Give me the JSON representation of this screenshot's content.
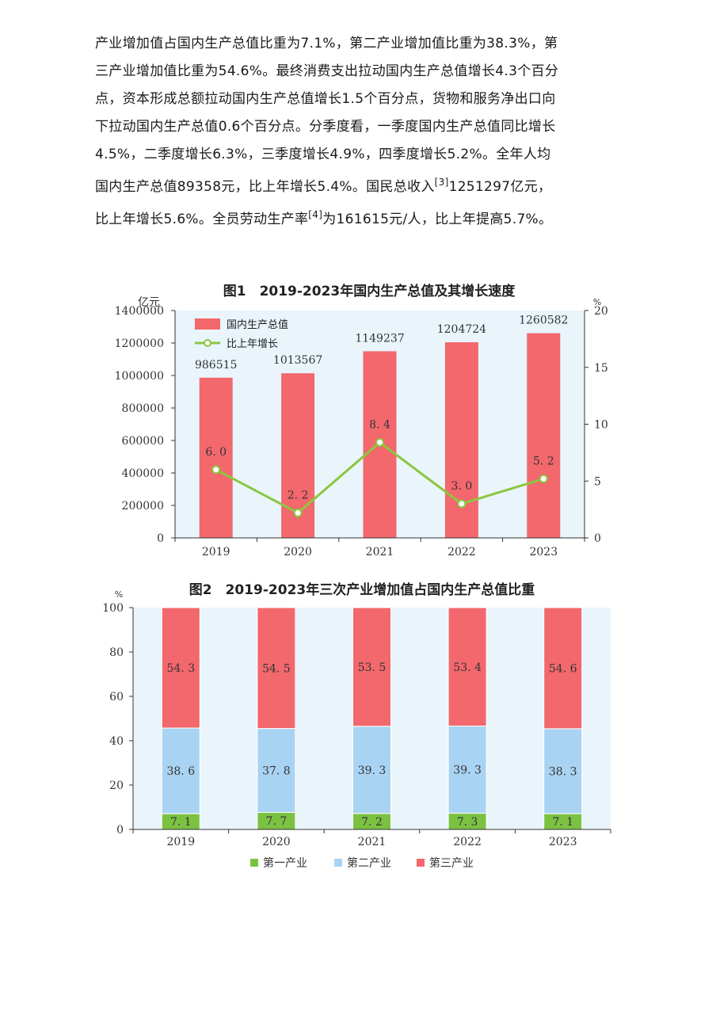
{
  "paragraph": {
    "lines": [
      "产业增加值占国内生产总值比重为7.1%，第二产业增加值比重为38.3%，第",
      "三产业增加值比重为54.6%。最终消费支出拉动国内生产总值增长4.3个百分",
      "点，资本形成总额拉动国内生产总值增长1.5个百分点，货物和服务净出口向",
      "下拉动国内生产总值0.6个百分点。分季度看，一季度国内生产总值同比增长",
      "4.5%，二季度增长6.3%，三季度增长4.9%，四季度增长5.2%。全年人均"
    ],
    "line6": {
      "pre": "国内生产总值89358元，比上年增长5.4%。国民总收入",
      "sup": "[3]",
      "post": "1251297亿元，"
    },
    "line7": {
      "pre": "比上年增长5.6%。全员劳动生产率",
      "sup": "[4]",
      "post": "为161615元/人，比上年提高5.7%。"
    }
  },
  "chart_data": [
    {
      "type": "bar+line",
      "title": "图1　2019-2023年国内生产总值及其增长速度",
      "y_left_unit": "亿元",
      "y_right_unit": "%",
      "categories": [
        "2019",
        "2020",
        "2021",
        "2022",
        "2023"
      ],
      "y_left_ticks": [
        "1400000",
        "1200000",
        "1000000",
        "800000",
        "600000",
        "400000",
        "200000",
        "0"
      ],
      "y_right_ticks": [
        "20",
        "15",
        "10",
        "5",
        "0"
      ],
      "ylim_left": [
        0,
        1400000
      ],
      "ylim_right": [
        0,
        20
      ],
      "series": [
        {
          "name": "国内生产总值",
          "kind": "bar",
          "color": "#f2686d",
          "values": [
            986515,
            1013567,
            1149237,
            1204724,
            1260582
          ],
          "labels": [
            "986515",
            "1013567",
            "1149237",
            "1204724",
            "1260582"
          ]
        },
        {
          "name": "比上年增长",
          "kind": "line",
          "color": "#8cc63f",
          "values": [
            6.0,
            2.2,
            8.4,
            3.0,
            5.2
          ],
          "labels": [
            "6. 0",
            "2. 2",
            "8. 4",
            "3. 0",
            "5. 2"
          ]
        }
      ],
      "legend_position": "top-left",
      "background": "#e9f5fb"
    },
    {
      "type": "stacked-bar",
      "title": "图2　2019-2023年三次产业增加值占国内生产总值比重",
      "y_unit": "%",
      "categories": [
        "2019",
        "2020",
        "2021",
        "2022",
        "2023"
      ],
      "y_ticks": [
        "100",
        "80",
        "60",
        "40",
        "20",
        "0"
      ],
      "ylim": [
        0,
        100
      ],
      "series": [
        {
          "name": "第一产业",
          "color": "#7cc242",
          "values": [
            7.1,
            7.7,
            7.2,
            7.3,
            7.1
          ],
          "labels": [
            "7. 1",
            "7. 7",
            "7. 2",
            "7. 3",
            "7. 1"
          ]
        },
        {
          "name": "第二产业",
          "color": "#a9d3f2",
          "values": [
            38.6,
            37.8,
            39.3,
            39.3,
            38.3
          ],
          "labels": [
            "38. 6",
            "37. 8",
            "39. 3",
            "39. 3",
            "38. 3"
          ]
        },
        {
          "name": "第三产业",
          "color": "#f2686d",
          "values": [
            54.3,
            54.5,
            53.5,
            53.4,
            54.6
          ],
          "labels": [
            "54. 3",
            "54. 5",
            "53. 5",
            "53. 4",
            "54. 6"
          ]
        }
      ],
      "legend_position": "bottom",
      "background": "#e9f5fb"
    }
  ]
}
